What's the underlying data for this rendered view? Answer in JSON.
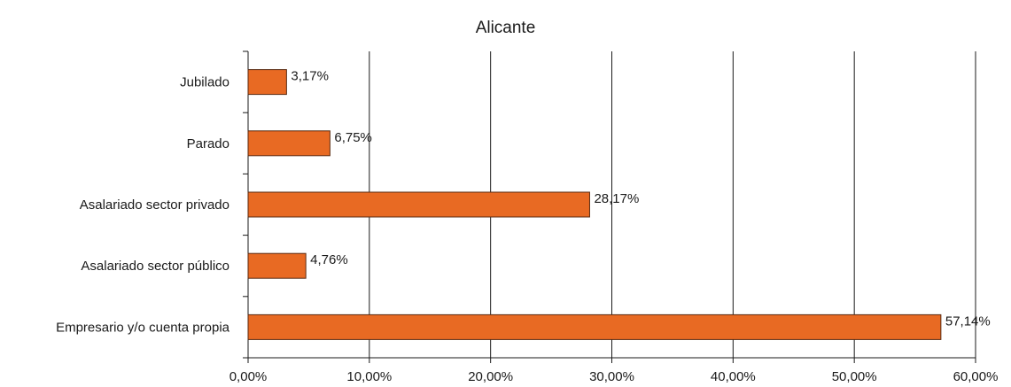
{
  "chart_data": {
    "type": "bar",
    "orientation": "horizontal",
    "title": "Alicante",
    "xlabel": "",
    "ylabel": "",
    "categories": [
      "Jubilado",
      "Parado",
      "Asalariado sector privado",
      "Asalariado sector público",
      "Empresario y/o cuenta propia"
    ],
    "values": [
      3.17,
      6.75,
      28.17,
      4.76,
      57.14
    ],
    "value_labels": [
      "3,17%",
      "6,75%",
      "28,17%",
      "4,76%",
      "57,14%"
    ],
    "xlim": [
      0,
      60
    ],
    "x_ticks": [
      0,
      10,
      20,
      30,
      40,
      50,
      60
    ],
    "x_tick_labels": [
      "0,00%",
      "10,00%",
      "20,00%",
      "30,00%",
      "40,00%",
      "50,00%",
      "60,00%"
    ],
    "grid": "vertical",
    "legend": "none",
    "bar_color": "#e86a23",
    "bar_edge_color": "#5a2a10"
  }
}
